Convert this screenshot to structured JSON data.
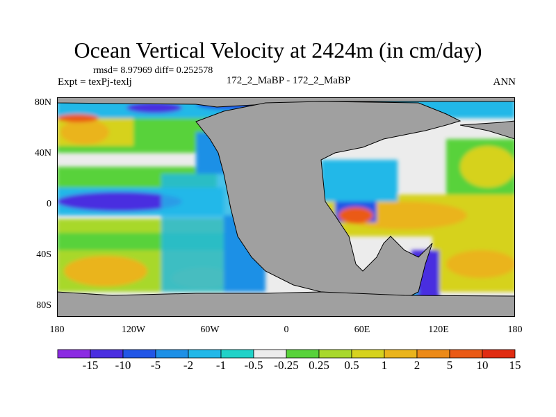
{
  "title": "Ocean Vertical Velocity at 2424m (in cm/day)",
  "stats": "rmsd= 8.97969 diff= 0.252578",
  "expt": "Expt = texPj-texlj",
  "center_label": "172_2_MaBP - 172_2_MaBP",
  "season": "ANN",
  "lat_labels": [
    "80N",
    "40N",
    "0",
    "40S",
    "80S"
  ],
  "lon_labels": [
    "180",
    "120W",
    "60W",
    "0",
    "60E",
    "120E",
    "180"
  ],
  "colorbar": {
    "labels": [
      "-15",
      "-10",
      "-5",
      "-2",
      "-1",
      "-0.5",
      "-0.25",
      "0.25",
      "0.5",
      "1",
      "2",
      "5",
      "10",
      "15"
    ],
    "colors": [
      "#8b2be2",
      "#4a2ee0",
      "#2256e6",
      "#1e90e6",
      "#22b8e8",
      "#20d2c8",
      "#ececec",
      "#58d23a",
      "#a8d82c",
      "#d6d21e",
      "#eab41c",
      "#ec8a18",
      "#ea5a16",
      "#e02c12"
    ]
  },
  "colors": {
    "land": "#a0a0a0",
    "coast": "#000000"
  }
}
